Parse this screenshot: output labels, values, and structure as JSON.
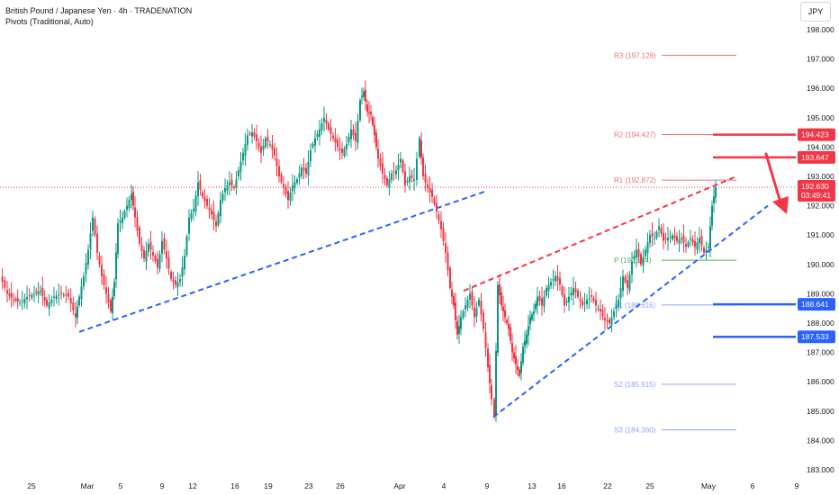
{
  "header": {
    "title": "British Pound / Japanese Yen · 4h · TRADENATION",
    "indicator": "Pivots (Traditional, Auto)",
    "currency": "JPY"
  },
  "colors": {
    "up": "#089981",
    "down": "#f23645",
    "blue": "#2962ff",
    "red": "#f23645",
    "green": "#4caf50",
    "pivot_red": "#e57373",
    "pivot_blue": "#90a4ff",
    "text": "#131722",
    "axis": "#b2b5be"
  },
  "chart_data": {
    "type": "candlestick",
    "title": "British Pound / Japanese Yen · 4h · TRADENATION",
    "ylim": [
      182.8,
      198.6
    ],
    "y_ticks": [
      "183.000",
      "184.000",
      "185.000",
      "186.000",
      "187.000",
      "188.000",
      "189.000",
      "190.000",
      "191.000",
      "192.000",
      "193.000",
      "194.000",
      "195.000",
      "196.000",
      "197.000",
      "198.000"
    ],
    "x_ticks": [
      "25",
      "Mar",
      "5",
      "9",
      "12",
      "16",
      "19",
      "23",
      "26",
      "Apr",
      "4",
      "9",
      "13",
      "16",
      "22",
      "25",
      "May",
      "6",
      "9"
    ],
    "price_path": [
      [
        0,
        189.6
      ],
      [
        8,
        189.0
      ],
      [
        15,
        188.8
      ],
      [
        22,
        188.7
      ],
      [
        30,
        188.9
      ],
      [
        38,
        189.0
      ],
      [
        45,
        189.1
      ],
      [
        52,
        188.6
      ],
      [
        60,
        188.9
      ],
      [
        68,
        189.0
      ],
      [
        76,
        188.9
      ],
      [
        84,
        188.2
      ],
      [
        88,
        188.9
      ],
      [
        93,
        189.6
      ],
      [
        98,
        190.5
      ],
      [
        103,
        191.6
      ],
      [
        108,
        190.4
      ],
      [
        113,
        189.6
      ],
      [
        118,
        189.0
      ],
      [
        123,
        188.4
      ],
      [
        127,
        189.4
      ],
      [
        131,
        191.4
      ],
      [
        136,
        191.6
      ],
      [
        141,
        192.0
      ],
      [
        146,
        192.4
      ],
      [
        150,
        191.6
      ],
      [
        155,
        190.7
      ],
      [
        160,
        190.2
      ],
      [
        165,
        190.7
      ],
      [
        170,
        190.3
      ],
      [
        175,
        189.9
      ],
      [
        180,
        190.8
      ],
      [
        185,
        190.2
      ],
      [
        190,
        189.5
      ],
      [
        195,
        189.3
      ],
      [
        200,
        189.5
      ],
      [
        205,
        190.3
      ],
      [
        210,
        191.6
      ],
      [
        215,
        191.9
      ],
      [
        220,
        192.8
      ],
      [
        225,
        192.3
      ],
      [
        230,
        192.0
      ],
      [
        235,
        191.7
      ],
      [
        240,
        191.3
      ],
      [
        245,
        192.2
      ],
      [
        250,
        192.6
      ],
      [
        255,
        192.8
      ],
      [
        260,
        192.6
      ],
      [
        265,
        193.2
      ],
      [
        270,
        193.8
      ],
      [
        275,
        194.4
      ],
      [
        280,
        194.5
      ],
      [
        285,
        194.2
      ],
      [
        290,
        193.8
      ],
      [
        295,
        194.3
      ],
      [
        300,
        194.1
      ],
      [
        305,
        193.7
      ],
      [
        310,
        193.0
      ],
      [
        315,
        192.6
      ],
      [
        320,
        192.2
      ],
      [
        325,
        192.7
      ],
      [
        330,
        192.9
      ],
      [
        335,
        193.3
      ],
      [
        340,
        193.1
      ],
      [
        345,
        193.9
      ],
      [
        350,
        194.3
      ],
      [
        355,
        194.6
      ],
      [
        360,
        195.0
      ],
      [
        365,
        194.6
      ],
      [
        370,
        194.3
      ],
      [
        375,
        194.0
      ],
      [
        380,
        193.8
      ],
      [
        385,
        194.1
      ],
      [
        390,
        194.6
      ],
      [
        395,
        194.2
      ],
      [
        400,
        195.6
      ],
      [
        404,
        195.9
      ],
      [
        408,
        195.2
      ],
      [
        412,
        195.1
      ],
      [
        416,
        194.4
      ],
      [
        420,
        193.6
      ],
      [
        425,
        193.1
      ],
      [
        430,
        192.7
      ],
      [
        435,
        193.1
      ],
      [
        440,
        193.2
      ],
      [
        445,
        193.6
      ],
      [
        450,
        192.7
      ],
      [
        455,
        193.0
      ],
      [
        460,
        192.9
      ],
      [
        466,
        194.3
      ],
      [
        470,
        193.0
      ],
      [
        475,
        192.6
      ],
      [
        480,
        192.3
      ],
      [
        485,
        191.8
      ],
      [
        490,
        191.2
      ],
      [
        495,
        190.4
      ],
      [
        500,
        189.2
      ],
      [
        504,
        188.6
      ],
      [
        508,
        187.6
      ],
      [
        512,
        188.2
      ],
      [
        517,
        188.6
      ],
      [
        522,
        189.0
      ],
      [
        527,
        188.2
      ],
      [
        532,
        188.8
      ],
      [
        537,
        187.8
      ],
      [
        542,
        186.5
      ],
      [
        546,
        185.4
      ],
      [
        549,
        184.8
      ],
      [
        553,
        189.3
      ],
      [
        557,
        188.6
      ],
      [
        561,
        188.2
      ],
      [
        565,
        187.8
      ],
      [
        569,
        187.0
      ],
      [
        573,
        186.6
      ],
      [
        577,
        186.2
      ],
      [
        581,
        187.2
      ],
      [
        585,
        187.6
      ],
      [
        589,
        188.2
      ],
      [
        593,
        188.4
      ],
      [
        597,
        188.9
      ],
      [
        602,
        188.6
      ],
      [
        607,
        189.2
      ],
      [
        612,
        189.4
      ],
      [
        617,
        189.6
      ],
      [
        622,
        189.3
      ],
      [
        627,
        188.6
      ],
      [
        632,
        188.9
      ],
      [
        637,
        189.2
      ],
      [
        642,
        188.9
      ],
      [
        647,
        188.6
      ],
      [
        652,
        188.8
      ],
      [
        657,
        188.9
      ],
      [
        662,
        188.6
      ],
      [
        667,
        188.4
      ],
      [
        672,
        188.1
      ],
      [
        677,
        188.0
      ],
      [
        682,
        188.4
      ],
      [
        687,
        188.8
      ],
      [
        692,
        189.6
      ],
      [
        697,
        189.2
      ],
      [
        702,
        190.1
      ],
      [
        707,
        190.5
      ],
      [
        712,
        190.0
      ],
      [
        717,
        190.5
      ],
      [
        722,
        191.0
      ],
      [
        727,
        190.9
      ],
      [
        732,
        191.3
      ],
      [
        737,
        190.8
      ],
      [
        742,
        190.9
      ],
      [
        747,
        191.0
      ],
      [
        752,
        190.8
      ],
      [
        757,
        190.9
      ],
      [
        762,
        190.6
      ],
      [
        767,
        190.9
      ],
      [
        772,
        190.6
      ],
      [
        777,
        190.9
      ],
      [
        782,
        190.4
      ],
      [
        787,
        190.6
      ],
      [
        791,
        192.0
      ],
      [
        795,
        192.63
      ]
    ],
    "trendlines": [
      {
        "from": [
          88,
          187.7
        ],
        "to": [
          540,
          192.5
        ],
        "color": "blue",
        "dashed": true
      },
      {
        "from": [
          548,
          184.8
        ],
        "to": [
          853,
          192.0
        ],
        "color": "blue",
        "dashed": true
      },
      {
        "from": [
          515,
          189.1
        ],
        "to": [
          818,
          193.0
        ],
        "color": "red",
        "dashed": true
      }
    ],
    "pivots": [
      {
        "label": "R3 (197.128)",
        "value": 197.128,
        "kind": "resistance"
      },
      {
        "label": "R2 (194.427)",
        "value": 194.427,
        "kind": "resistance"
      },
      {
        "label": "R1 (192.872)",
        "value": 192.872,
        "kind": "resistance"
      },
      {
        "label": "P (190.144)",
        "value": 190.144,
        "kind": "pivot"
      },
      {
        "label": "S1 (188.616)",
        "value": 188.616,
        "kind": "support"
      },
      {
        "label": "S2 (185.915)",
        "value": 185.915,
        "kind": "support"
      },
      {
        "label": "S3 (184.360)",
        "value": 184.36,
        "kind": "support"
      }
    ],
    "levels": [
      {
        "value": 194.423,
        "label": "194.423",
        "color": "red"
      },
      {
        "value": 193.647,
        "label": "193.647",
        "color": "red"
      },
      {
        "value": 188.641,
        "label": "188.641",
        "color": "blue"
      },
      {
        "value": 187.533,
        "label": "187.533",
        "color": "blue"
      }
    ],
    "last_price": {
      "value": 192.63,
      "label": "192.630",
      "countdown": "03:49:41"
    }
  }
}
